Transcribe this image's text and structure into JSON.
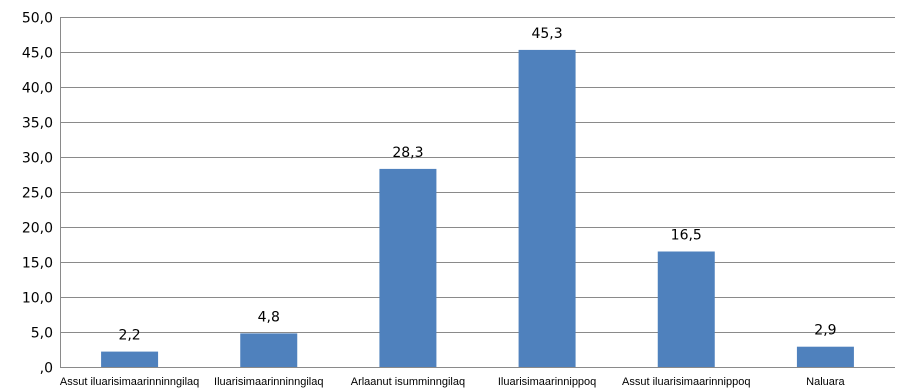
{
  "chart_data": {
    "type": "bar",
    "categories": [
      "Assut iluarisimaarinninngilaq",
      "Iluarisimaarinninngilaq",
      "Arlaanut isumminngilaq",
      "Iluarisimaarinnippoq",
      "Assut iluarisimaarinnippoq",
      "Naluara"
    ],
    "values": [
      2.2,
      4.8,
      28.3,
      45.3,
      16.5,
      2.9
    ],
    "value_labels": [
      "2,2",
      "4,8",
      "28,3",
      "45,3",
      "16,5",
      "2,9"
    ],
    "y_ticks": [
      0,
      5,
      10,
      15,
      20,
      25,
      30,
      35,
      40,
      45,
      50
    ],
    "y_tick_labels": [
      ",0",
      "5,0",
      "10,0",
      "15,0",
      "20,0",
      "25,0",
      "30,0",
      "35,0",
      "40,0",
      "45,0",
      "50,0"
    ],
    "ylim": [
      0,
      50
    ],
    "title": "",
    "xlabel": "",
    "ylabel": "",
    "grid": true,
    "legend": "none",
    "bar_color": "#4f81bd"
  }
}
